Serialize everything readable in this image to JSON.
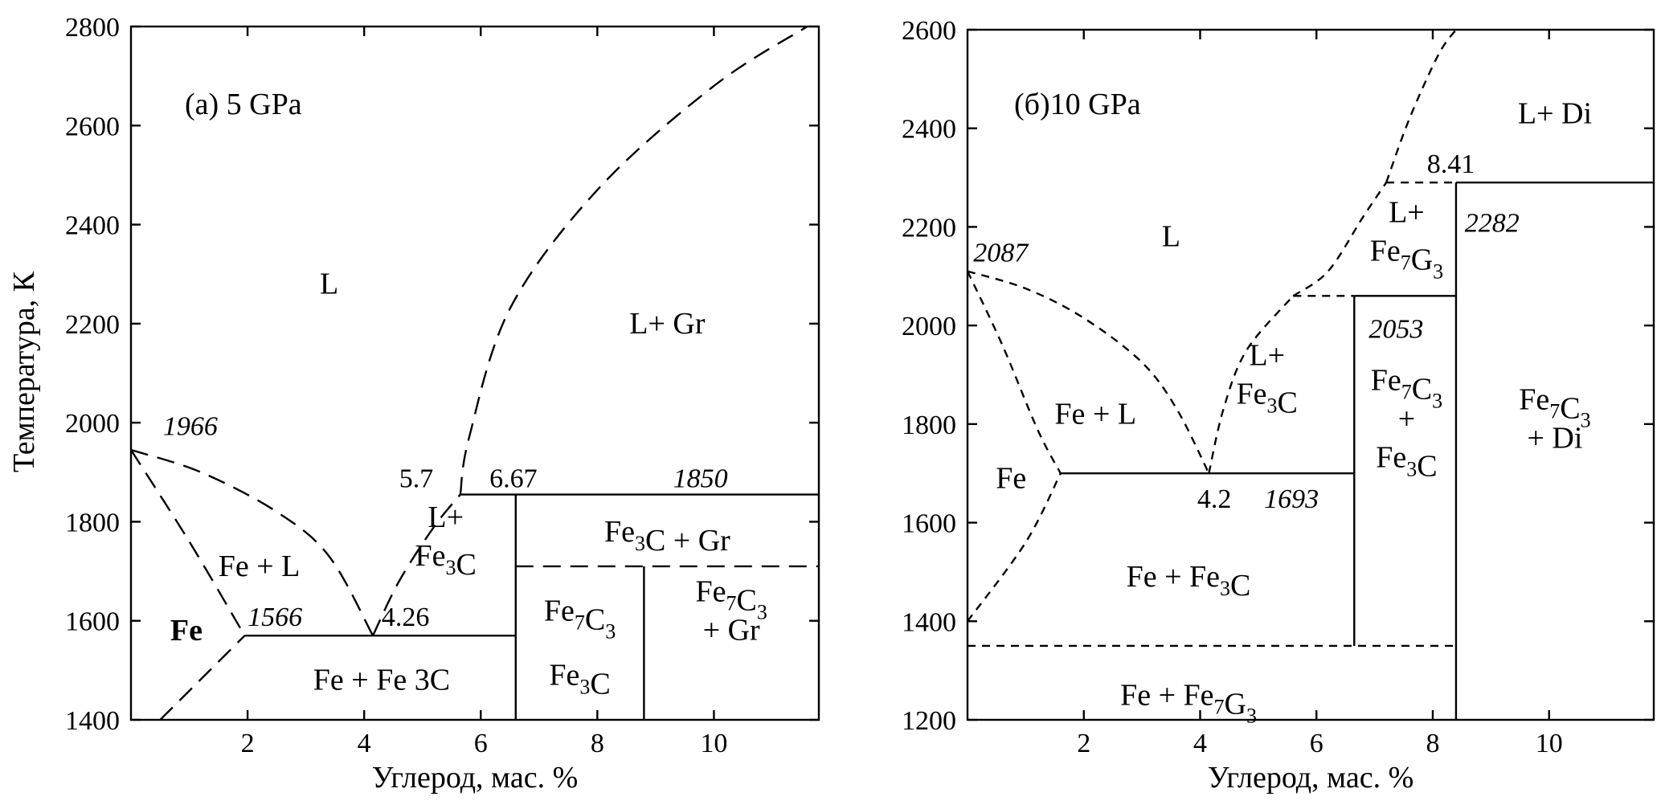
{
  "y_axis_title": "Температура, К",
  "chart_data": [
    {
      "type": "phase-diagram",
      "title": "(a) 5 GPa",
      "xlabel": "Углерод, мас. %",
      "xlim": [
        0,
        11.8
      ],
      "ylim": [
        1400,
        2800
      ],
      "x_ticks": [
        2,
        4,
        6,
        8,
        10
      ],
      "y_ticks": [
        1400,
        1600,
        1800,
        2000,
        2200,
        2400,
        2600,
        2800
      ],
      "boundaries": [
        {
          "style": "dashed",
          "points": [
            [
              0,
              1945
            ],
            [
              1.2,
              1900
            ],
            [
              2.5,
              1820
            ],
            [
              3.4,
              1730
            ],
            [
              4.15,
              1570
            ]
          ]
        },
        {
          "style": "dashed",
          "points": [
            [
              0,
              1945
            ],
            [
              1.0,
              1760
            ],
            [
              1.95,
              1570
            ]
          ]
        },
        {
          "style": "dashed",
          "points": [
            [
              0.5,
              1400
            ],
            [
              1.95,
              1570
            ]
          ]
        },
        {
          "style": "dashed",
          "points": [
            [
              4.15,
              1570
            ],
            [
              4.6,
              1680
            ],
            [
              5.2,
              1790
            ],
            [
              5.65,
              1855
            ]
          ]
        },
        {
          "style": "dashed",
          "points": [
            [
              5.65,
              1855
            ],
            [
              5.8,
              1970
            ],
            [
              6.5,
              2230
            ],
            [
              8.0,
              2470
            ],
            [
              10.0,
              2680
            ],
            [
              11.6,
              2800
            ]
          ]
        },
        {
          "style": "solid",
          "points": [
            [
              1.95,
              1570
            ],
            [
              6.6,
              1570
            ]
          ]
        },
        {
          "style": "solid",
          "points": [
            [
              5.65,
              1855
            ],
            [
              11.8,
              1855
            ]
          ]
        },
        {
          "style": "solid",
          "points": [
            [
              6.6,
              1400
            ],
            [
              6.6,
              1855
            ]
          ]
        },
        {
          "style": "solid",
          "points": [
            [
              8.8,
              1400
            ],
            [
              8.8,
              1710
            ]
          ]
        },
        {
          "style": "dashed",
          "points": [
            [
              6.6,
              1710
            ],
            [
              11.8,
              1710
            ]
          ]
        }
      ],
      "annotations": [
        {
          "text": "1966",
          "italic": true,
          "x": 0.55,
          "y": 1975
        },
        {
          "text": "1566",
          "italic": true,
          "x": 2.0,
          "y": 1590
        },
        {
          "text": "4.26",
          "italic": false,
          "x": 4.3,
          "y": 1590
        },
        {
          "text": "5.7",
          "italic": false,
          "x": 4.6,
          "y": 1870
        },
        {
          "text": "6.67",
          "italic": false,
          "x": 6.15,
          "y": 1870
        },
        {
          "text": "1850",
          "italic": true,
          "x": 9.3,
          "y": 1870
        }
      ],
      "regions": [
        {
          "lines": [
            "L"
          ],
          "x": 3.4,
          "y": 2280
        },
        {
          "lines": [
            "L+ Gr"
          ],
          "x": 9.2,
          "y": 2200
        },
        {
          "lines": [
            "Fe + L"
          ],
          "x": 2.2,
          "y": 1710
        },
        {
          "lines": [
            "Fe"
          ],
          "bold": true,
          "x": 0.95,
          "y": 1580
        },
        {
          "lines": [
            "L+",
            "Fe_3C"
          ],
          "x": 5.4,
          "y": 1770
        },
        {
          "lines": [
            "Fe_3C + Gr"
          ],
          "x": 9.2,
          "y": 1780
        },
        {
          "lines": [
            "Fe_7C_3"
          ],
          "x": 7.7,
          "y": 1620
        },
        {
          "lines": [
            "Fe_3C"
          ],
          "x": 7.7,
          "y": 1490
        },
        {
          "lines": [
            "Fe_7C_3",
            "+ Gr"
          ],
          "x": 10.3,
          "y": 1620
        },
        {
          "lines": [
            "Fe + Fe 3C"
          ],
          "x": 4.3,
          "y": 1480
        }
      ]
    },
    {
      "type": "phase-diagram",
      "title": "(б)10 GPa",
      "xlabel": "Углерод, мас. %",
      "xlim": [
        0,
        11.8
      ],
      "ylim": [
        1200,
        2600
      ],
      "x_ticks": [
        2,
        4,
        6,
        8,
        10
      ],
      "y_ticks": [
        1200,
        1400,
        1600,
        1800,
        2000,
        2200,
        2400,
        2600
      ],
      "boundaries": [
        {
          "style": "dashed",
          "points": [
            [
              0,
              2110
            ],
            [
              1.0,
              2075
            ],
            [
              2.0,
              2015
            ],
            [
              3.0,
              1925
            ],
            [
              3.6,
              1830
            ],
            [
              4.15,
              1700
            ]
          ]
        },
        {
          "style": "dashed",
          "points": [
            [
              0,
              2110
            ],
            [
              0.6,
              1960
            ],
            [
              1.2,
              1790
            ],
            [
              1.6,
              1700
            ]
          ]
        },
        {
          "style": "dashed",
          "points": [
            [
              0,
              1400
            ],
            [
              1.0,
              1560
            ],
            [
              1.6,
              1700
            ]
          ]
        },
        {
          "style": "dashed",
          "points": [
            [
              4.15,
              1700
            ],
            [
              4.4,
              1830
            ],
            [
              4.8,
              1950
            ],
            [
              5.6,
              2060
            ]
          ]
        },
        {
          "style": "dashed",
          "points": [
            [
              5.6,
              2060
            ],
            [
              6.2,
              2110
            ],
            [
              6.8,
              2220
            ],
            [
              7.2,
              2290
            ]
          ]
        },
        {
          "style": "dashed",
          "points": [
            [
              7.2,
              2290
            ],
            [
              7.6,
              2420
            ],
            [
              8.1,
              2550
            ],
            [
              8.4,
              2600
            ]
          ]
        },
        {
          "style": "dashed",
          "points": [
            [
              5.6,
              2060
            ],
            [
              6.65,
              2060
            ]
          ]
        },
        {
          "style": "dashed",
          "points": [
            [
              7.2,
              2290
            ],
            [
              8.4,
              2290
            ]
          ]
        },
        {
          "style": "solid",
          "points": [
            [
              1.6,
              1700
            ],
            [
              6.65,
              1700
            ]
          ]
        },
        {
          "style": "solid",
          "points": [
            [
              6.65,
              2060
            ],
            [
              8.4,
              2060
            ]
          ]
        },
        {
          "style": "solid",
          "points": [
            [
              8.4,
              2290
            ],
            [
              11.8,
              2290
            ]
          ]
        },
        {
          "style": "solid",
          "points": [
            [
              6.65,
              1350
            ],
            [
              6.65,
              2060
            ]
          ]
        },
        {
          "style": "solid",
          "points": [
            [
              8.4,
              1200
            ],
            [
              8.4,
              2290
            ]
          ]
        },
        {
          "style": "dashed",
          "points": [
            [
              0,
              1350
            ],
            [
              8.4,
              1350
            ]
          ]
        }
      ],
      "annotations": [
        {
          "text": "2087",
          "italic": true,
          "x": 0.1,
          "y": 2130
        },
        {
          "text": "8.41",
          "italic": false,
          "x": 7.9,
          "y": 2310
        },
        {
          "text": "2282",
          "italic": true,
          "x": 8.55,
          "y": 2190
        },
        {
          "text": "2053",
          "italic": true,
          "x": 6.9,
          "y": 1975
        },
        {
          "text": "4.2",
          "italic": false,
          "x": 3.95,
          "y": 1630
        },
        {
          "text": "1693",
          "italic": true,
          "x": 5.1,
          "y": 1630
        }
      ],
      "regions": [
        {
          "lines": [
            "L+ Di"
          ],
          "x": 10.1,
          "y": 2430
        },
        {
          "lines": [
            "L"
          ],
          "x": 3.5,
          "y": 2180
        },
        {
          "lines": [
            "L+",
            "Fe_7G_3"
          ],
          "x": 7.55,
          "y": 2190
        },
        {
          "lines": [
            "Fe + L"
          ],
          "x": 2.2,
          "y": 1820
        },
        {
          "lines": [
            "L+",
            "Fe_3C"
          ],
          "x": 5.15,
          "y": 1900
        },
        {
          "lines": [
            "Fe_7C_3",
            "+",
            "Fe_3C"
          ],
          "x": 7.55,
          "y": 1810
        },
        {
          "lines": [
            "Fe_7C_3",
            "+ Di"
          ],
          "x": 10.1,
          "y": 1810
        },
        {
          "lines": [
            "Fe"
          ],
          "x": 0.75,
          "y": 1690
        },
        {
          "lines": [
            "Fe + Fe_3C"
          ],
          "x": 3.8,
          "y": 1490
        },
        {
          "lines": [
            "Fe + Fe_7G_3"
          ],
          "x": 3.8,
          "y": 1250
        }
      ]
    }
  ]
}
